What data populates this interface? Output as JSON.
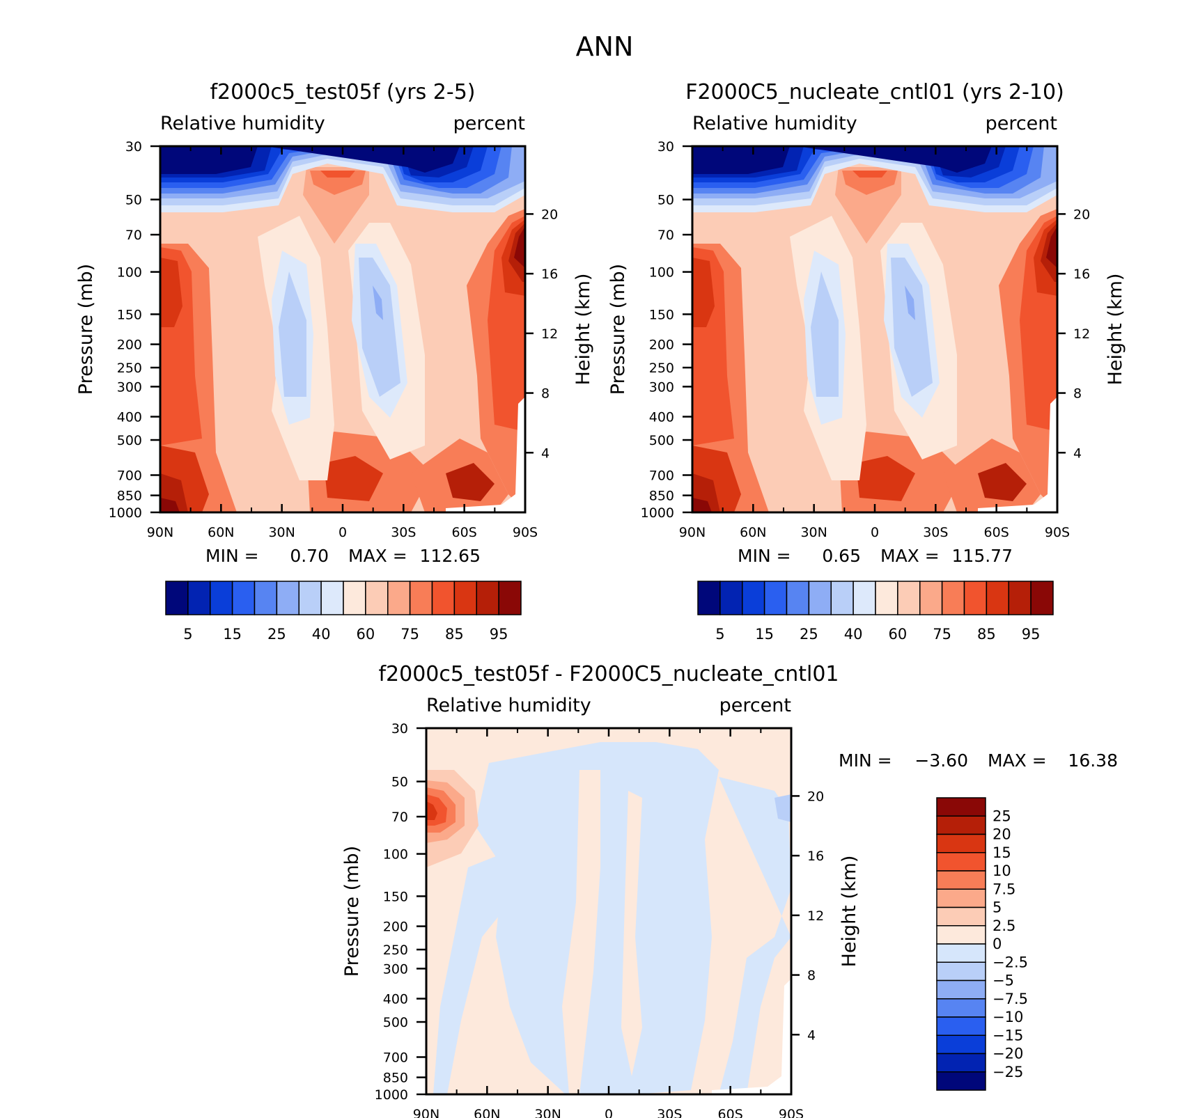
{
  "figure": {
    "title": "ANN"
  },
  "chart_data": [
    {
      "type": "contour",
      "title": "f2000c5_test05f (yrs 2-5)",
      "left_label": "Relative humidity",
      "right_label": "percent",
      "xlabel": "",
      "ylabel": "Pressure (mb)",
      "y2label": "Height (km)",
      "x_ticks": [
        "90N",
        "60N",
        "30N",
        "0",
        "30S",
        "60S",
        "90S"
      ],
      "y_ticks": [
        30,
        50,
        70,
        100,
        150,
        200,
        250,
        300,
        400,
        500,
        700,
        850,
        1000
      ],
      "y2_ticks": [
        20,
        16,
        12,
        8,
        4
      ],
      "min_label": "MIN =",
      "min_value": "0.70",
      "max_label": "MAX =",
      "max_value": "112.65",
      "colorbar_labels": [
        "5",
        "15",
        "25",
        "40",
        "60",
        "75",
        "85",
        "95"
      ]
    },
    {
      "type": "contour",
      "title": "F2000C5_nucleate_cntl01 (yrs 2-10)",
      "left_label": "Relative humidity",
      "right_label": "percent",
      "xlabel": "",
      "ylabel": "Pressure (mb)",
      "y2label": "Height (km)",
      "x_ticks": [
        "90N",
        "60N",
        "30N",
        "0",
        "30S",
        "60S",
        "90S"
      ],
      "y_ticks": [
        30,
        50,
        70,
        100,
        150,
        200,
        250,
        300,
        400,
        500,
        700,
        850,
        1000
      ],
      "y2_ticks": [
        20,
        16,
        12,
        8,
        4
      ],
      "min_label": "MIN =",
      "min_value": "0.65",
      "max_label": "MAX =",
      "max_value": "115.77",
      "colorbar_labels": [
        "5",
        "15",
        "25",
        "40",
        "60",
        "75",
        "85",
        "95"
      ]
    },
    {
      "type": "contour",
      "title": "f2000c5_test05f - F2000C5_nucleate_cntl01",
      "left_label": "Relative humidity",
      "right_label": "percent",
      "xlabel": "",
      "ylabel": "Pressure (mb)",
      "y2label": "Height (km)",
      "x_ticks": [
        "90N",
        "60N",
        "30N",
        "0",
        "30S",
        "60S",
        "90S"
      ],
      "y_ticks": [
        30,
        50,
        70,
        100,
        150,
        200,
        250,
        300,
        400,
        500,
        700,
        850,
        1000
      ],
      "y2_ticks": [
        20,
        16,
        12,
        8,
        4
      ],
      "min_label": "MIN =",
      "min_value": "-3.60",
      "max_label": "MAX =",
      "max_value": "16.38",
      "colorbar_labels": [
        "25",
        "20",
        "15",
        "10",
        "7.5",
        "5",
        "2.5",
        "0",
        "-2.5",
        "-5",
        "-7.5",
        "-10",
        "-15",
        "-20",
        "-25"
      ]
    }
  ],
  "colors": {
    "abs_scale": [
      "#00077a",
      "#0223b2",
      "#0a3ed9",
      "#2a5ff0",
      "#5784f2",
      "#8eadf5",
      "#b9cff8",
      "#dde9fb",
      "#fde9dc",
      "#fcccb6",
      "#fba98a",
      "#f87d57",
      "#f1542e",
      "#d93612",
      "#b51f08",
      "#8a0806"
    ],
    "diff_scale": [
      "#8a0806",
      "#b51f08",
      "#d93612",
      "#f1542e",
      "#f87d57",
      "#fba98a",
      "#fcccb6",
      "#fde9dc",
      "#d6e6fb",
      "#b9cff8",
      "#8eadf5",
      "#5784f2",
      "#2a5ff0",
      "#0a3ed9",
      "#0223b2",
      "#00077a"
    ]
  }
}
